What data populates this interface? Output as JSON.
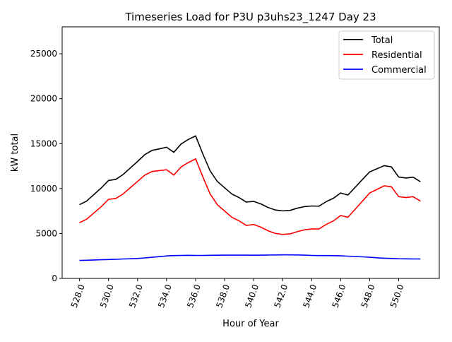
{
  "chart_data": {
    "type": "line",
    "title": "Timeseries Load for P3U p3uhs23_1247  Day 23",
    "xlabel": "Hour of Year",
    "ylabel": "kW total",
    "xlim": [
      526.8,
      552.8
    ],
    "ylim": [
      0,
      28000
    ],
    "xticks": [
      528,
      530,
      532,
      534,
      536,
      538,
      540,
      542,
      544,
      546,
      548,
      550
    ],
    "xtick_labels": [
      "528.0",
      "530.0",
      "532.0",
      "534.0",
      "536.0",
      "538.0",
      "540.0",
      "542.0",
      "544.0",
      "546.0",
      "548.0",
      "550.0"
    ],
    "yticks": [
      0,
      5000,
      10000,
      15000,
      20000,
      25000
    ],
    "ytick_labels": [
      "0",
      "5000",
      "10000",
      "15000",
      "20000",
      "25000"
    ],
    "legend_position": "top-right",
    "grid": false,
    "x": [
      528,
      528.5,
      529,
      529.5,
      530,
      530.5,
      531,
      531.5,
      532,
      532.5,
      533,
      533.5,
      534,
      534.5,
      535,
      535.5,
      536,
      536.5,
      537,
      537.5,
      538,
      538.5,
      539,
      539.5,
      540,
      540.5,
      541,
      541.5,
      542,
      542.5,
      543,
      543.5,
      544,
      544.5,
      545,
      545.5,
      546,
      546.5,
      547,
      547.5,
      548,
      548.5,
      549,
      549.5,
      550,
      550.5,
      551,
      551.5
    ],
    "series": [
      {
        "name": "Total",
        "color": "#000000",
        "values": [
          8200,
          8620,
          9350,
          10080,
          10900,
          11030,
          11560,
          12290,
          13020,
          13780,
          14250,
          14420,
          14600,
          14040,
          14960,
          15470,
          15860,
          13860,
          11970,
          10780,
          10090,
          9390,
          8990,
          8490,
          8580,
          8290,
          7900,
          7610,
          7520,
          7570,
          7810,
          7990,
          8060,
          8040,
          8540,
          8930,
          9510,
          9280,
          10140,
          11000,
          11850,
          12200,
          12550,
          12420,
          11290,
          11180,
          11270,
          10760
        ]
      },
      {
        "name": "Residential",
        "color": "#ff0000",
        "values": [
          6200,
          6600,
          7300,
          8000,
          8800,
          8900,
          9400,
          10100,
          10800,
          11500,
          11900,
          12000,
          12100,
          11500,
          12400,
          12900,
          13300,
          11300,
          9400,
          8200,
          7500,
          6800,
          6400,
          5900,
          6000,
          5700,
          5300,
          5000,
          4900,
          4950,
          5200,
          5400,
          5500,
          5500,
          6000,
          6400,
          7000,
          6800,
          7700,
          8600,
          9500,
          9900,
          10300,
          10200,
          9100,
          9000,
          9100,
          8600
        ]
      },
      {
        "name": "Commercial",
        "color": "#0000ff",
        "values": [
          2000,
          2020,
          2050,
          2080,
          2100,
          2130,
          2160,
          2190,
          2220,
          2280,
          2350,
          2420,
          2500,
          2540,
          2560,
          2570,
          2560,
          2560,
          2570,
          2580,
          2590,
          2590,
          2590,
          2590,
          2580,
          2590,
          2600,
          2610,
          2620,
          2620,
          2610,
          2590,
          2560,
          2540,
          2540,
          2530,
          2510,
          2480,
          2440,
          2400,
          2350,
          2300,
          2250,
          2220,
          2190,
          2180,
          2170,
          2160
        ]
      }
    ]
  }
}
